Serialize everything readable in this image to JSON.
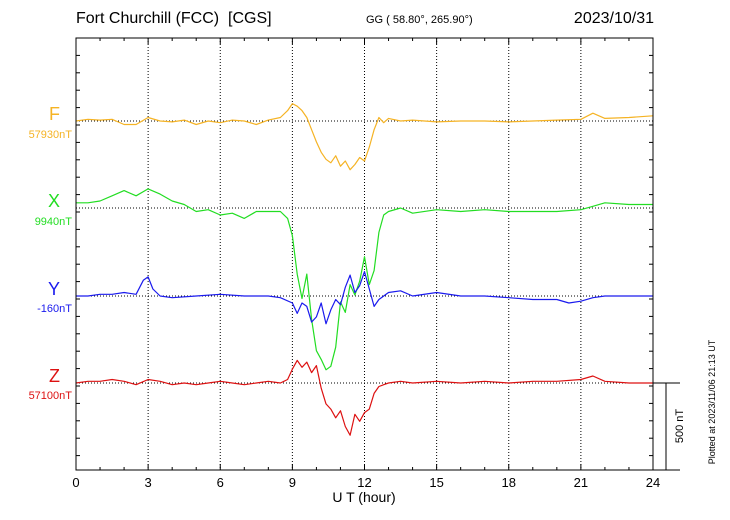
{
  "header": {
    "station": "Fort Churchill (FCC)  [CGS]",
    "coords": "GG ( 58.80°, 265.90°)",
    "date": "2023/10/31"
  },
  "chart_data": {
    "type": "line",
    "xlabel": "U T (hour)",
    "xlim": [
      0,
      24
    ],
    "x_ticks": [
      "0",
      "3",
      "6",
      "9",
      "12",
      "15",
      "18",
      "21",
      "24"
    ],
    "scale_bar": "500 nT",
    "plotted_note": "Plotted at 2023/11/06 21:13 UT",
    "grid": true,
    "series": [
      {
        "name": "F",
        "baseline_label": "57930nT",
        "color": "#f5b324",
        "unit": "nT",
        "x": [
          0,
          0.5,
          1,
          1.5,
          2,
          2.5,
          3,
          3.5,
          4,
          4.5,
          5,
          5.5,
          6,
          6.5,
          7,
          7.5,
          8,
          8.5,
          8.8,
          9,
          9.2,
          9.4,
          9.6,
          9.8,
          10,
          10.2,
          10.4,
          10.6,
          10.8,
          11,
          11.2,
          11.4,
          11.6,
          11.8,
          12,
          12.2,
          12.4,
          12.6,
          12.8,
          13,
          13.5,
          14,
          15,
          16,
          17,
          18,
          19,
          20,
          21,
          21.5,
          22,
          23,
          24
        ],
        "y": [
          0,
          10,
          5,
          10,
          -20,
          -20,
          20,
          0,
          -5,
          5,
          -20,
          0,
          -10,
          5,
          0,
          -20,
          5,
          20,
          60,
          100,
          85,
          60,
          20,
          -50,
          -120,
          -180,
          -220,
          -240,
          -200,
          -260,
          -230,
          -280,
          -250,
          -210,
          -230,
          -150,
          -50,
          20,
          -10,
          15,
          0,
          5,
          -5,
          0,
          0,
          -5,
          0,
          5,
          10,
          45,
          15,
          20,
          30
        ]
      },
      {
        "name": "X",
        "baseline_label": "9940nT",
        "color": "#22dd22",
        "unit": "nT",
        "x": [
          0,
          0.5,
          1,
          1.5,
          2,
          2.5,
          3,
          3.5,
          4,
          4.5,
          5,
          5.5,
          6,
          6.5,
          7,
          7.5,
          8,
          8.5,
          8.8,
          9,
          9.2,
          9.4,
          9.6,
          9.8,
          10,
          10.2,
          10.4,
          10.6,
          10.8,
          11,
          11.2,
          11.4,
          11.6,
          11.8,
          12,
          12.2,
          12.4,
          12.6,
          12.8,
          13,
          13.5,
          14,
          15,
          16,
          17,
          18,
          19,
          20,
          21,
          21.5,
          22,
          23,
          24
        ],
        "y": [
          30,
          30,
          40,
          70,
          100,
          70,
          110,
          80,
          40,
          20,
          -20,
          -10,
          -40,
          -30,
          -60,
          -20,
          -20,
          -20,
          -60,
          -160,
          -380,
          -520,
          -380,
          -640,
          -820,
          -870,
          -930,
          -910,
          -800,
          -540,
          -600,
          -440,
          -500,
          -420,
          -280,
          -440,
          -360,
          -140,
          -40,
          -20,
          0,
          -30,
          -10,
          -20,
          -10,
          -20,
          -20,
          -20,
          -10,
          10,
          30,
          20,
          20
        ]
      },
      {
        "name": "Y",
        "baseline_label": "-160nT",
        "color": "#1a1aee",
        "unit": "nT",
        "x": [
          0,
          0.5,
          1,
          1.5,
          2,
          2.5,
          2.8,
          3,
          3.2,
          3.5,
          4,
          5,
          6,
          7,
          8,
          8.5,
          9,
          9.2,
          9.4,
          9.6,
          9.8,
          10,
          10.2,
          10.4,
          10.6,
          10.8,
          11,
          11.2,
          11.4,
          11.6,
          11.8,
          12,
          12.2,
          12.4,
          12.6,
          12.8,
          13,
          13.5,
          14,
          15,
          16,
          17,
          18,
          19,
          20,
          20.5,
          21,
          21.5,
          22,
          23,
          24
        ],
        "y": [
          0,
          0,
          10,
          10,
          20,
          10,
          90,
          110,
          40,
          0,
          -10,
          0,
          10,
          0,
          0,
          -10,
          -40,
          -100,
          -40,
          -60,
          -150,
          -120,
          -40,
          -160,
          -80,
          -20,
          -50,
          50,
          120,
          20,
          60,
          140,
          40,
          -60,
          -20,
          0,
          20,
          30,
          0,
          20,
          0,
          0,
          -10,
          -20,
          -20,
          -40,
          -30,
          -10,
          0,
          0,
          0
        ]
      },
      {
        "name": "Z",
        "baseline_label": "57100nT",
        "color": "#dd1111",
        "unit": "nT",
        "x": [
          0,
          0.5,
          1,
          1.5,
          2,
          2.5,
          3,
          3.5,
          4,
          4.5,
          5,
          5.5,
          6,
          6.5,
          7,
          7.5,
          8,
          8.5,
          8.8,
          9,
          9.2,
          9.4,
          9.6,
          9.8,
          10,
          10.2,
          10.4,
          10.6,
          10.8,
          11,
          11.2,
          11.4,
          11.6,
          11.8,
          12,
          12.2,
          12.4,
          12.6,
          12.8,
          13,
          13.5,
          14,
          15,
          16,
          17,
          18,
          19,
          20,
          21,
          21.5,
          22,
          23,
          24
        ],
        "y": [
          0,
          10,
          10,
          20,
          10,
          -10,
          20,
          10,
          -10,
          0,
          -10,
          0,
          10,
          0,
          -10,
          0,
          10,
          0,
          20,
          80,
          130,
          90,
          120,
          60,
          100,
          -30,
          -120,
          -150,
          -200,
          -160,
          -250,
          -300,
          -180,
          -220,
          -170,
          -150,
          -60,
          -20,
          -10,
          0,
          10,
          0,
          10,
          0,
          10,
          0,
          10,
          10,
          20,
          40,
          10,
          0,
          0
        ]
      }
    ]
  }
}
